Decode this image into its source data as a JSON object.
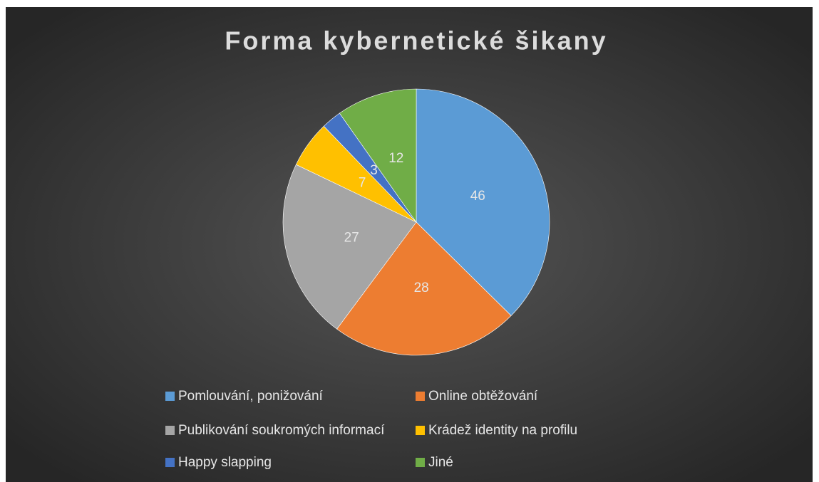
{
  "chart_data": {
    "type": "pie",
    "title": "Forma kybernetické šikany",
    "categories": [
      "Pomlouvání, ponižování",
      "Online obtěžování",
      "Publikování soukromých informací",
      "Krádež identity na profilu",
      "Happy slapping",
      "Jiné"
    ],
    "values": [
      46,
      28,
      27,
      7,
      3,
      12
    ],
    "colors": [
      "#5b9bd5",
      "#ed7d31",
      "#a5a5a5",
      "#ffc000",
      "#4472c4",
      "#70ad47"
    ],
    "legend": "bottom"
  }
}
